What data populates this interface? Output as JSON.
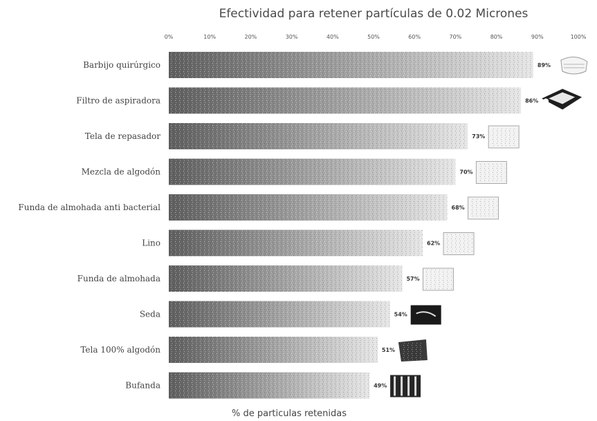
{
  "chart_data": {
    "type": "bar",
    "orientation": "horizontal",
    "title": "Efectividad para retener partículas de 0.02 Micrones",
    "xlabel": "% de particulas retenidas",
    "ylabel": "",
    "xlim": [
      0,
      100
    ],
    "ticks": [
      "0%",
      "10%",
      "20%",
      "30%",
      "40%",
      "50%",
      "60%",
      "70%",
      "80%",
      "90%",
      "100%"
    ],
    "categories": [
      "Barbijo quirúrgico",
      "Filtro de aspiradora",
      "Tela de repasador",
      "Mezcla de algodón",
      "Funda de almohada anti bacterial",
      "Lino",
      "Funda de almohada",
      "Seda",
      "Tela 100% algodón",
      "Bufanda"
    ],
    "values": [
      89,
      86,
      73,
      70,
      68,
      62,
      57,
      54,
      51,
      49
    ],
    "value_labels": [
      "89%",
      "86%",
      "73%",
      "70%",
      "68%",
      "62%",
      "57%",
      "54%",
      "51%",
      "49%"
    ],
    "grid": false,
    "legend": "none"
  },
  "colors": {
    "bar_start": "#5e5e5e",
    "bar_mid": "#a9a9a9",
    "bar_end": "#e6e6e6",
    "text": "#444444"
  },
  "icons": [
    "surgical-mask-icon",
    "vacuum-filter-icon",
    "kitchen-towel-icon",
    "cotton-blend-fabric-icon",
    "antibacterial-pillowcase-icon",
    "linen-fabric-icon",
    "pillowcase-icon",
    "silk-fabric-icon",
    "cotton-fabric-icon",
    "scarf-icon"
  ]
}
